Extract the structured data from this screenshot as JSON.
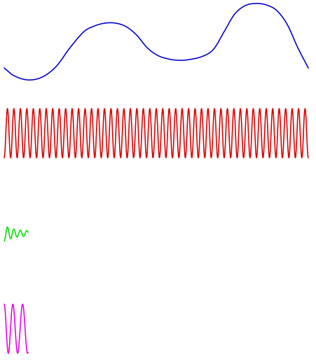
{
  "figure": {
    "background": "#ffffff",
    "panels": [
      {
        "id": "message-signal",
        "kind": "message",
        "color": "#0000cc"
      },
      {
        "id": "carrier-signal",
        "kind": "carrier",
        "color": "#dd0000"
      },
      {
        "id": "am-signal",
        "kind": "am",
        "color": "#00dd00"
      },
      {
        "id": "fm-signal",
        "kind": "fm",
        "color": "#e800e8"
      }
    ]
  }
}
